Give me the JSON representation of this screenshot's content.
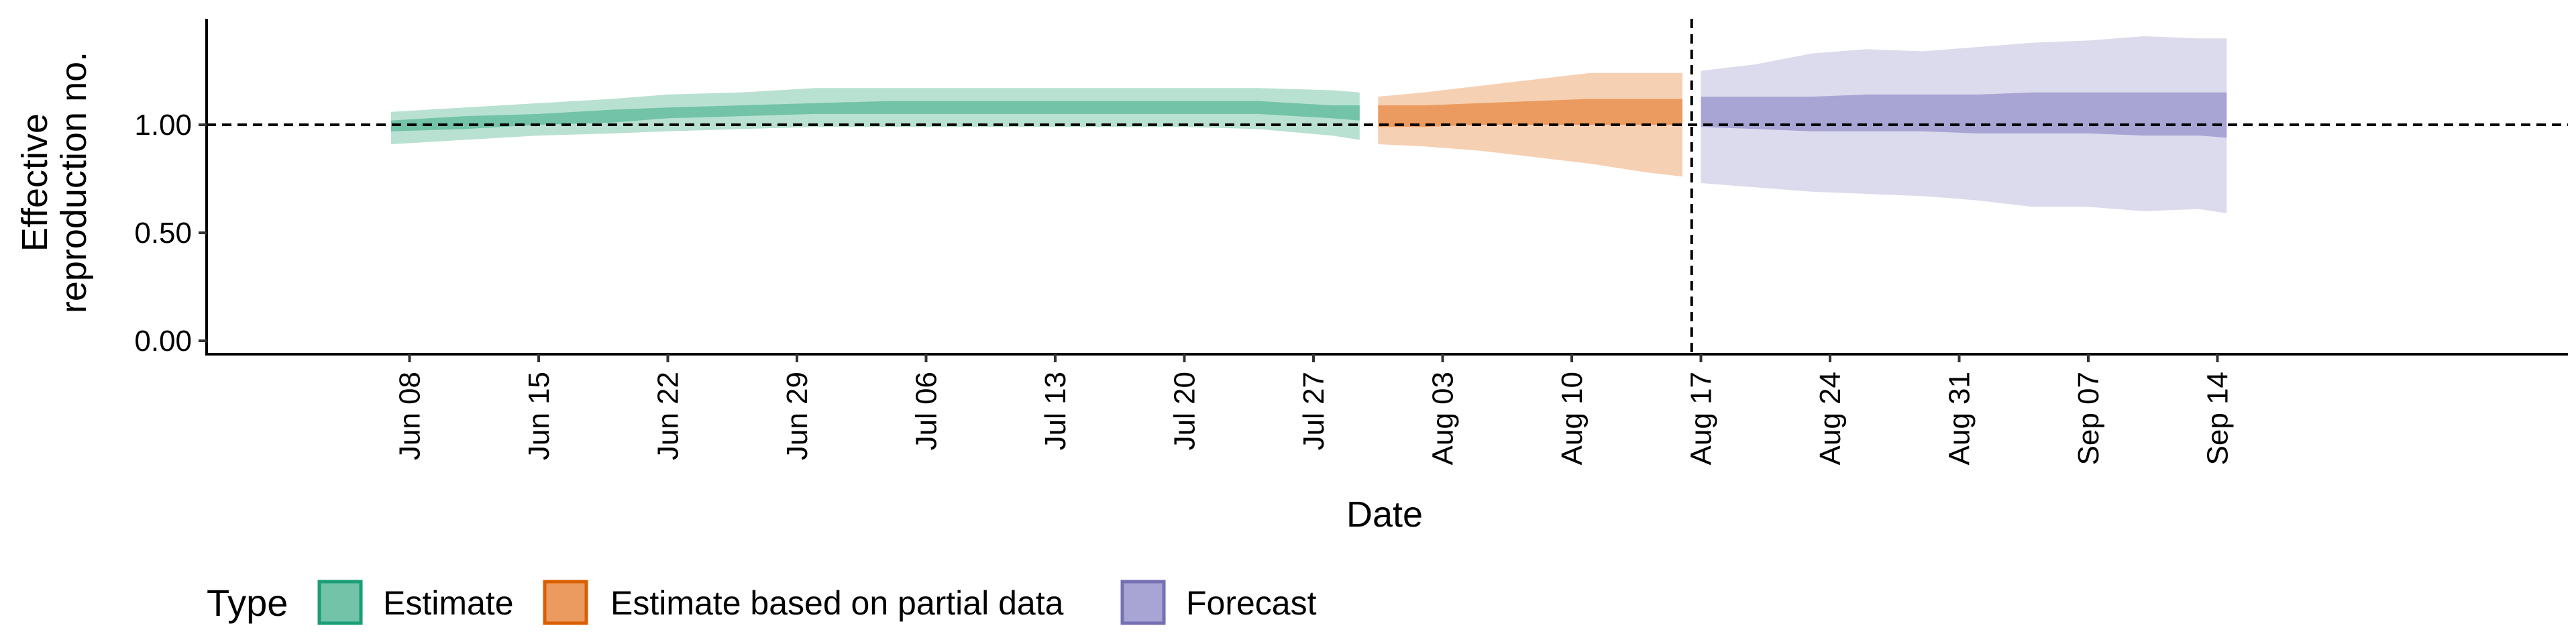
{
  "chart_data": {
    "type": "area",
    "ylabel_lines": [
      "Effective",
      "reproduction no."
    ],
    "xlabel": "Date",
    "ylim": [
      0,
      1.5
    ],
    "y_ticks": [
      0.0,
      0.5,
      1.0
    ],
    "y_tick_labels": [
      "0.00",
      "0.50",
      "1.00"
    ],
    "x_range": [
      -11,
      117
    ],
    "x_ticks": [
      0,
      7,
      14,
      21,
      28,
      35,
      42,
      49,
      56,
      63,
      70,
      77,
      84,
      91,
      98
    ],
    "x_tick_labels": [
      "Jun 08",
      "Jun 15",
      "Jun 22",
      "Jun 29",
      "Jul 06",
      "Jul 13",
      "Jul 20",
      "Jul 27",
      "Aug 03",
      "Aug 10",
      "Aug 17",
      "Aug 24",
      "Aug 31",
      "Sep 07",
      "Sep 14"
    ],
    "x_unit": "days since Jun 08",
    "reference_line_y": 1.0,
    "forecast_start_day": 69.5,
    "legend": {
      "title": "Type",
      "entries": [
        {
          "label": "Estimate",
          "fill": "#72c3a8",
          "stroke": "#1b9e77"
        },
        {
          "label": "Estimate based on partial data",
          "fill": "#eb9b5f",
          "stroke": "#d95f02"
        },
        {
          "label": "Forecast",
          "fill": "#a8a5d5",
          "stroke": "#7570b3"
        }
      ]
    },
    "series": [
      {
        "name": "Estimate",
        "outer_color": "#b9e1d2",
        "inner_color": "#72c3a8",
        "x": [
          -1,
          3,
          7,
          11,
          14,
          18,
          22,
          26,
          30,
          34,
          38,
          42,
          46,
          50,
          51.5
        ],
        "outer_lower": [
          0.91,
          0.93,
          0.95,
          0.96,
          0.97,
          0.98,
          0.99,
          0.99,
          0.99,
          0.99,
          0.99,
          0.99,
          0.98,
          0.95,
          0.93
        ],
        "outer_upper": [
          1.06,
          1.08,
          1.1,
          1.12,
          1.14,
          1.15,
          1.17,
          1.17,
          1.17,
          1.17,
          1.17,
          1.17,
          1.17,
          1.16,
          1.15
        ],
        "inner_lower": [
          0.97,
          0.98,
          1.0,
          1.01,
          1.03,
          1.04,
          1.05,
          1.05,
          1.05,
          1.05,
          1.05,
          1.05,
          1.05,
          1.03,
          1.02
        ],
        "inner_upper": [
          1.02,
          1.04,
          1.05,
          1.07,
          1.08,
          1.09,
          1.1,
          1.11,
          1.11,
          1.11,
          1.11,
          1.11,
          1.11,
          1.09,
          1.09
        ]
      },
      {
        "name": "Estimate based on partial data",
        "outer_color": "#f6d0b3",
        "inner_color": "#eb9b5f",
        "x": [
          52.5,
          55,
          58,
          61,
          64,
          67,
          69
        ],
        "outer_lower": [
          0.91,
          0.9,
          0.88,
          0.85,
          0.82,
          0.78,
          0.76
        ],
        "outer_upper": [
          1.13,
          1.15,
          1.18,
          1.21,
          1.24,
          1.24,
          1.24
        ],
        "inner_lower": [
          0.99,
          0.99,
          1.0,
          1.0,
          1.0,
          1.0,
          1.0
        ],
        "inner_upper": [
          1.09,
          1.09,
          1.1,
          1.11,
          1.12,
          1.12,
          1.12
        ]
      },
      {
        "name": "Forecast",
        "outer_color": "#dcdbed",
        "inner_color": "#a8a5d5",
        "x": [
          70,
          73,
          76,
          79,
          82,
          85,
          88,
          91,
          94,
          97,
          98.5
        ],
        "outer_lower": [
          0.73,
          0.71,
          0.69,
          0.68,
          0.67,
          0.65,
          0.62,
          0.62,
          0.6,
          0.61,
          0.59
        ],
        "outer_upper": [
          1.25,
          1.28,
          1.33,
          1.35,
          1.34,
          1.36,
          1.38,
          1.39,
          1.41,
          1.4,
          1.4
        ],
        "inner_lower": [
          0.99,
          0.98,
          0.97,
          0.97,
          0.97,
          0.96,
          0.96,
          0.96,
          0.95,
          0.95,
          0.94
        ],
        "inner_upper": [
          1.13,
          1.13,
          1.13,
          1.14,
          1.14,
          1.14,
          1.15,
          1.15,
          1.15,
          1.15,
          1.15
        ]
      }
    ]
  }
}
